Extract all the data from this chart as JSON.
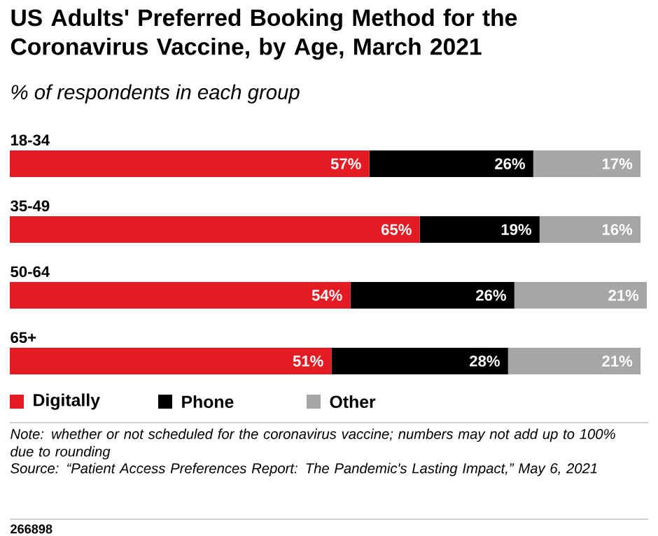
{
  "chart_data": {
    "type": "bar",
    "orientation": "horizontal",
    "stacked": true,
    "title": "US Adults' Preferred Booking Method for the Coronavirus Vaccine, by Age, March 2021",
    "subtitle": "% of respondents in each group",
    "categories": [
      "18-34",
      "35-49",
      "50-64",
      "65+"
    ],
    "series": [
      {
        "name": "Digitally",
        "color": "#e41b23",
        "values": [
          57,
          65,
          54,
          51
        ],
        "value_labels": [
          "57%",
          "65%",
          "54%",
          "51%"
        ]
      },
      {
        "name": "Phone",
        "color": "#000000",
        "values": [
          26,
          19,
          26,
          28
        ],
        "value_labels": [
          "26%",
          "19%",
          "26%",
          "28%"
        ]
      },
      {
        "name": "Other",
        "color": "#a6a6a6",
        "values": [
          17,
          16,
          21,
          21
        ],
        "value_labels": [
          "17%",
          "16%",
          "21%",
          "21%"
        ]
      }
    ],
    "legend": "bottom left",
    "annotations": [
      "Note: whether or not scheduled for the coronavirus vaccine; numbers may not add up to 100% due to rounding",
      "Source: “Patient Access Preferences Report: The Pandemic's Lasting Impact,” May 6, 2021",
      "266898"
    ]
  }
}
